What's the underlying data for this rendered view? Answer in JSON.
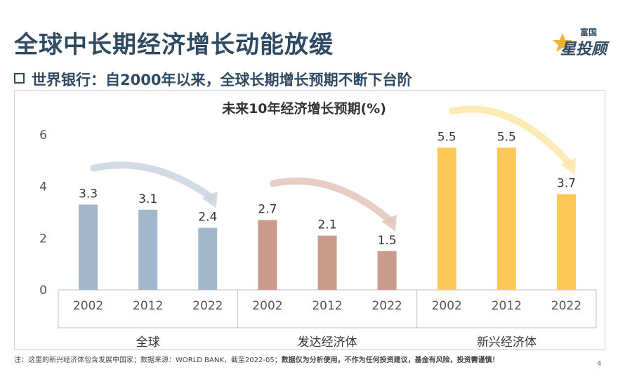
{
  "header": {
    "title": "全球中长期经济增长动能放缓",
    "subtitle": "世界银行：自2000年以来，全球长期增长预期不断下台阶",
    "logo_top": "富国",
    "logo_main": "星投顾"
  },
  "chart_data": {
    "type": "bar",
    "title": "未来10年经济增长预期(%)",
    "ylim": [
      0,
      6
    ],
    "yticks": [
      0,
      2,
      4,
      6
    ],
    "groups": [
      {
        "name": "全球",
        "color": "#a3b7cc",
        "arrow_color": "#c9d5e0",
        "bars": [
          {
            "year": "2002",
            "value": 3.3,
            "label": "3.3"
          },
          {
            "year": "2012",
            "value": 3.1,
            "label": "3.1"
          },
          {
            "year": "2022",
            "value": 2.4,
            "label": "2.4"
          }
        ]
      },
      {
        "name": "发达经济体",
        "color": "#c89b8c",
        "arrow_color": "#e3c4ba",
        "bars": [
          {
            "year": "2002",
            "value": 2.7,
            "label": "2.7"
          },
          {
            "year": "2012",
            "value": 2.1,
            "label": "2.1"
          },
          {
            "year": "2022",
            "value": 1.5,
            "label": "1.5"
          }
        ]
      },
      {
        "name": "新兴经济体",
        "color": "#fcc958",
        "arrow_color": "#fde6a8",
        "bars": [
          {
            "year": "2002",
            "value": 5.5,
            "label": "5.5"
          },
          {
            "year": "2012",
            "value": 5.5,
            "label": "5.5"
          },
          {
            "year": "2022",
            "value": 3.7,
            "label": "3.7"
          }
        ]
      }
    ]
  },
  "footer": {
    "note_plain": "注：这里的新兴经济体包含发展中国家；数据来源：WORLD BANK，截至2022-05；",
    "note_bold": "数据仅为分析使用，不作为任何投资建议，基金有风险，投资需谨慎！",
    "page": "4"
  }
}
